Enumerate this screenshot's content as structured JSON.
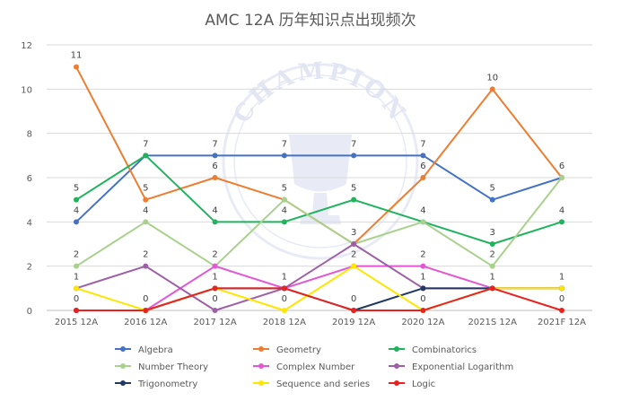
{
  "chart_data": {
    "type": "line",
    "title": "AMC 12A 历年知识点出现频次",
    "xlabel": "",
    "ylabel": "",
    "categories": [
      "2015 12A",
      "2016 12A",
      "2017 12A",
      "2018 12A",
      "2019 12A",
      "2020 12A",
      "2021S 12A",
      "2021F 12A"
    ],
    "ylim": [
      0,
      12
    ],
    "yticks": [
      0,
      2,
      4,
      6,
      8,
      10,
      12
    ],
    "grid": true,
    "legend_position": "bottom",
    "series": [
      {
        "name": "Algebra",
        "color": "#4472c4",
        "values": [
          4,
          7,
          7,
          7,
          7,
          7,
          5,
          6
        ]
      },
      {
        "name": "Geometry",
        "color": "#ed7d31",
        "values": [
          11,
          5,
          6,
          5,
          3,
          6,
          10,
          6
        ]
      },
      {
        "name": "Combinatorics",
        "color": "#1fb35e",
        "values": [
          5,
          7,
          4,
          4,
          5,
          4,
          3,
          4
        ]
      },
      {
        "name": "Number Theory",
        "color": "#a9d18e",
        "values": [
          2,
          4,
          2,
          5,
          3,
          4,
          2,
          6
        ]
      },
      {
        "name": "Complex Number",
        "color": "#e356d4",
        "values": [
          0,
          0,
          2,
          1,
          2,
          2,
          1,
          1
        ]
      },
      {
        "name": "Exponential Logarithm",
        "color": "#9e5fa7",
        "values": [
          1,
          2,
          0,
          1,
          3,
          1,
          1,
          1
        ]
      },
      {
        "name": "Trigonometry",
        "color": "#203864",
        "values": [
          0,
          0,
          1,
          1,
          0,
          1,
          1,
          1
        ]
      },
      {
        "name": "Sequence and series",
        "color": "#ffe600",
        "values": [
          1,
          0,
          1,
          0,
          2,
          0,
          1,
          1
        ]
      },
      {
        "name": "Logic",
        "color": "#e8231f",
        "values": [
          0,
          0,
          1,
          1,
          0,
          0,
          1,
          0
        ]
      }
    ],
    "annotations": [
      "11",
      "10",
      "7",
      "7",
      "7",
      "7",
      "7",
      "7",
      "6",
      "6",
      "6",
      "5",
      "5",
      "5",
      "5",
      "5",
      "4",
      "4",
      "4",
      "4",
      "4",
      "3",
      "3",
      "2",
      "2",
      "2",
      "2",
      "2",
      "2",
      "1",
      "1",
      "1",
      "1",
      "1",
      "1",
      "0",
      "0",
      "0",
      "0",
      "0",
      "0"
    ]
  },
  "watermark": {
    "text": "CHAMPION"
  }
}
